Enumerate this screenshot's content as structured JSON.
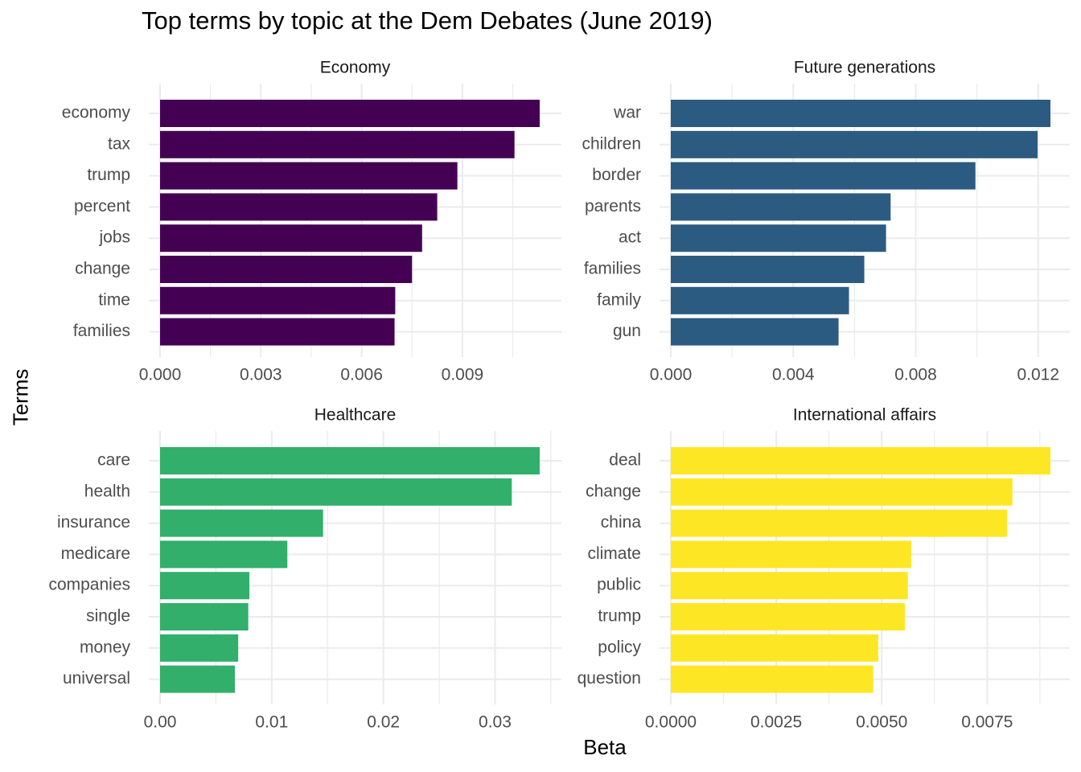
{
  "chart_data": {
    "type": "bar",
    "orientation": "horizontal",
    "title": "Top terms by topic at the Dem Debates (June 2019)",
    "xlabel": "Beta",
    "ylabel": "Terms",
    "grid": true,
    "facets": [
      {
        "name": "Economy",
        "color": "#440154",
        "xlim": [
          0,
          0.0113
        ],
        "xticks": [
          0,
          0.003,
          0.006,
          0.009
        ],
        "xtick_labels": [
          "0.000",
          "0.003",
          "0.006",
          "0.009"
        ],
        "categories": [
          "economy",
          "tax",
          "trump",
          "percent",
          "jobs",
          "change",
          "time",
          "families"
        ],
        "values": [
          0.0113,
          0.01055,
          0.00885,
          0.00825,
          0.0078,
          0.0075,
          0.007,
          0.00698
        ]
      },
      {
        "name": "Future generations",
        "color": "#2B5B81",
        "xlim": [
          0,
          0.0124
        ],
        "xticks": [
          0,
          0.004,
          0.008,
          0.012
        ],
        "xtick_labels": [
          "0.000",
          "0.004",
          "0.008",
          "0.012"
        ],
        "categories": [
          "war",
          "children",
          "border",
          "parents",
          "act",
          "families",
          "family",
          "gun"
        ],
        "values": [
          0.0124,
          0.01198,
          0.00995,
          0.00718,
          0.00703,
          0.00632,
          0.00582,
          0.00548
        ]
      },
      {
        "name": "Healthcare",
        "color": "#31AF6B",
        "xlim": [
          0,
          0.034
        ],
        "xticks": [
          0,
          0.01,
          0.02,
          0.03
        ],
        "xtick_labels": [
          "0.00",
          "0.01",
          "0.02",
          "0.03"
        ],
        "categories": [
          "care",
          "health",
          "insurance",
          "medicare",
          "companies",
          "single",
          "money",
          "universal"
        ],
        "values": [
          0.034,
          0.0315,
          0.0146,
          0.0114,
          0.008,
          0.0079,
          0.007,
          0.0067
        ]
      },
      {
        "name": "International affairs",
        "color": "#FDE725",
        "xlim": [
          0,
          0.009
        ],
        "xticks": [
          0,
          0.0025,
          0.005,
          0.0075
        ],
        "xtick_labels": [
          "0.0000",
          "0.0025",
          "0.0050",
          "0.0075"
        ],
        "categories": [
          "deal",
          "change",
          "china",
          "climate",
          "public",
          "trump",
          "policy",
          "question"
        ],
        "values": [
          0.009,
          0.0081,
          0.00797,
          0.0057,
          0.00562,
          0.00555,
          0.00492,
          0.0048
        ]
      }
    ]
  }
}
